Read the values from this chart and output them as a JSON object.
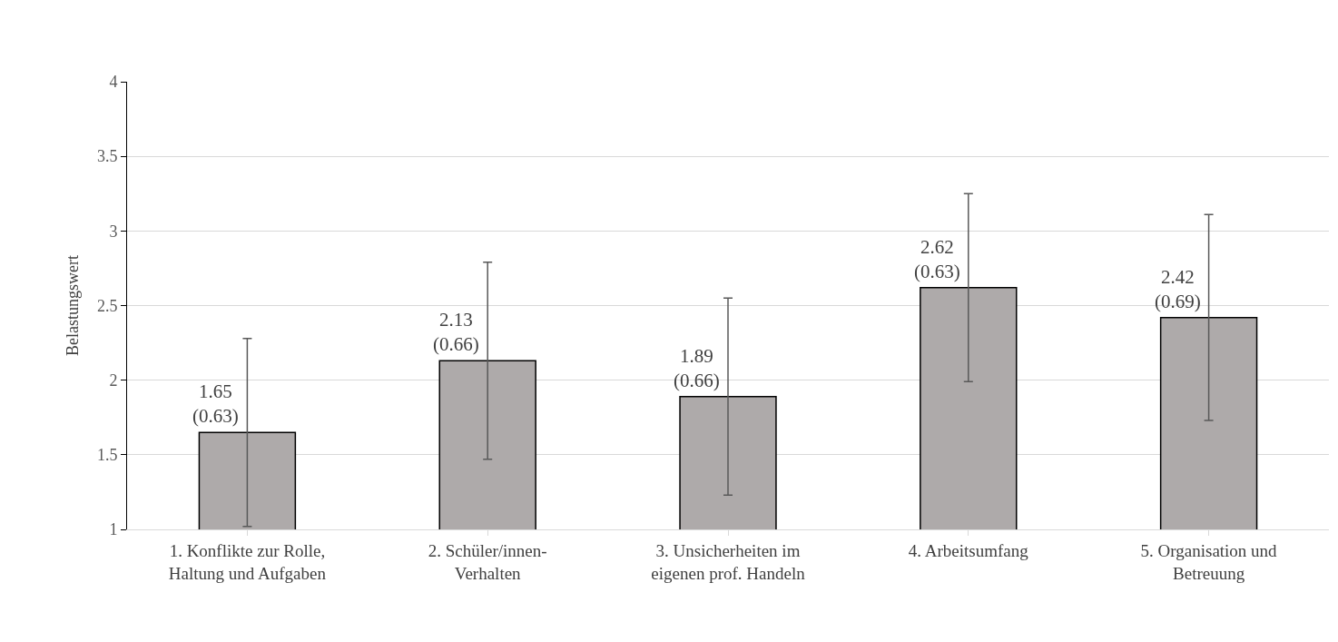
{
  "chart_data": {
    "type": "bar",
    "ylabel": "Belastungswert",
    "categories": [
      "1. Konflikte zur Rolle,\nHaltung und Aufgaben",
      "2. Schüler/innen-\nVerhalten",
      "3. Unsicherheiten im\neigenen prof. Handeln",
      "4. Arbeitsumfang",
      "5. Organisation und\nBetreuung"
    ],
    "values": [
      1.65,
      2.13,
      1.89,
      2.62,
      2.42
    ],
    "errors": [
      0.63,
      0.66,
      0.66,
      0.63,
      0.69
    ],
    "value_labels": [
      "1.65\n(0.63)",
      "2.13\n(0.66)",
      "1.89\n(0.66)",
      "2.62\n(0.63)",
      "2.42\n(0.69)"
    ],
    "color": "#aeaaaa",
    "ylim": [
      1,
      4
    ],
    "yticks": [
      1,
      1.5,
      2,
      2.5,
      3,
      3.5,
      4
    ],
    "grid": "y",
    "legend": false
  }
}
